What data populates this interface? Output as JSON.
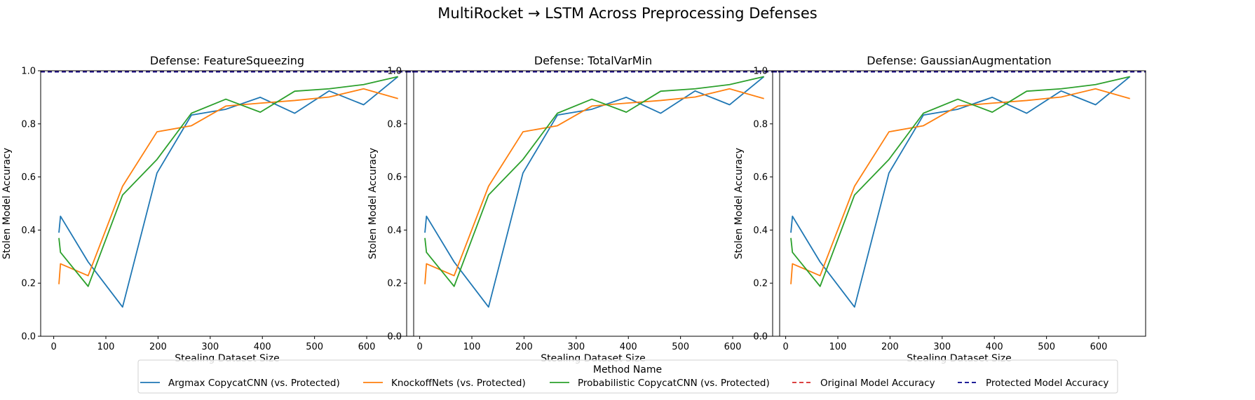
{
  "figure": {
    "title": "MultiRocket → LSTM Across Preprocessing Defenses"
  },
  "legend": {
    "title": "Method Name",
    "entries": [
      {
        "label": "Argmax CopycatCNN (vs. Protected)",
        "color": "#1f77b4",
        "style": "solid"
      },
      {
        "label": "KnockoffNets (vs. Protected)",
        "color": "#ff7f0e",
        "style": "solid"
      },
      {
        "label": "Probabilistic CopycatCNN (vs. Protected)",
        "color": "#2ca02c",
        "style": "solid"
      },
      {
        "label": "Original Model Accuracy",
        "color": "#d62728",
        "style": "dashed"
      },
      {
        "label": "Protected Model Accuracy",
        "color": "#00008b",
        "style": "dashed"
      }
    ]
  },
  "chart_data": [
    {
      "type": "line",
      "title": "Defense: FeatureSqueezing",
      "xlabel": "Stealing Dataset Size",
      "ylabel": "Stolen Model Accuracy",
      "xlim": [
        -25,
        690
      ],
      "ylim": [
        0,
        1.0
      ],
      "xticks": [
        0,
        100,
        200,
        300,
        400,
        500,
        600
      ],
      "yticks": [
        0.0,
        0.2,
        0.4,
        0.6,
        0.8,
        1.0
      ],
      "grid": false,
      "series": [
        {
          "name": "Argmax CopycatCNN (vs. Protected)",
          "color": "#1f77b4",
          "x": [
            10,
            13,
            66,
            132,
            198,
            264,
            330,
            396,
            462,
            528,
            594,
            660
          ],
          "y": [
            0.39,
            0.452,
            0.28,
            0.11,
            0.615,
            0.833,
            0.855,
            0.9,
            0.84,
            0.924,
            0.872,
            0.978
          ]
        },
        {
          "name": "KnockoffNets (vs. Protected)",
          "color": "#ff7f0e",
          "x": [
            10,
            13,
            66,
            132,
            198,
            264,
            330,
            396,
            462,
            528,
            594,
            660
          ],
          "y": [
            0.196,
            0.273,
            0.228,
            0.565,
            0.77,
            0.793,
            0.867,
            0.878,
            0.888,
            0.901,
            0.932,
            0.895
          ]
        },
        {
          "name": "Probabilistic CopycatCNN (vs. Protected)",
          "color": "#2ca02c",
          "x": [
            10,
            13,
            66,
            132,
            198,
            264,
            330,
            396,
            462,
            528,
            594,
            660
          ],
          "y": [
            0.37,
            0.316,
            0.188,
            0.532,
            0.666,
            0.84,
            0.893,
            0.844,
            0.923,
            0.932,
            0.948,
            0.978
          ]
        },
        {
          "name": "Original Model Accuracy",
          "color": "#d62728",
          "dashed": true,
          "constant": 0.996
        },
        {
          "name": "Protected Model Accuracy",
          "color": "#00008b",
          "dashed": true,
          "constant": 0.996
        }
      ]
    },
    {
      "type": "line",
      "title": "Defense: TotalVarMin",
      "xlabel": "Stealing Dataset Size",
      "ylabel": "Stolen Model Accuracy",
      "xlim": [
        -25,
        690
      ],
      "ylim": [
        0,
        1.0
      ],
      "xticks": [
        0,
        100,
        200,
        300,
        400,
        500,
        600
      ],
      "yticks": [
        0.0,
        0.2,
        0.4,
        0.6,
        0.8,
        1.0
      ],
      "grid": false,
      "series": [
        {
          "name": "Argmax CopycatCNN (vs. Protected)",
          "color": "#1f77b4",
          "x": [
            10,
            13,
            66,
            132,
            198,
            264,
            330,
            396,
            462,
            528,
            594,
            660
          ],
          "y": [
            0.39,
            0.452,
            0.28,
            0.11,
            0.615,
            0.833,
            0.855,
            0.9,
            0.84,
            0.924,
            0.872,
            0.978
          ]
        },
        {
          "name": "KnockoffNets (vs. Protected)",
          "color": "#ff7f0e",
          "x": [
            10,
            13,
            66,
            132,
            198,
            264,
            330,
            396,
            462,
            528,
            594,
            660
          ],
          "y": [
            0.196,
            0.273,
            0.228,
            0.565,
            0.77,
            0.793,
            0.867,
            0.878,
            0.888,
            0.901,
            0.932,
            0.895
          ]
        },
        {
          "name": "Probabilistic CopycatCNN (vs. Protected)",
          "color": "#2ca02c",
          "x": [
            10,
            13,
            66,
            132,
            198,
            264,
            330,
            396,
            462,
            528,
            594,
            660
          ],
          "y": [
            0.37,
            0.316,
            0.188,
            0.532,
            0.666,
            0.84,
            0.893,
            0.844,
            0.923,
            0.932,
            0.948,
            0.978
          ]
        },
        {
          "name": "Original Model Accuracy",
          "color": "#d62728",
          "dashed": true,
          "constant": 0.996
        },
        {
          "name": "Protected Model Accuracy",
          "color": "#00008b",
          "dashed": true,
          "constant": 0.996
        }
      ]
    },
    {
      "type": "line",
      "title": "Defense: GaussianAugmentation",
      "xlabel": "Stealing Dataset Size",
      "ylabel": "Stolen Model Accuracy",
      "xlim": [
        -25,
        690
      ],
      "ylim": [
        0,
        1.0
      ],
      "xticks": [
        0,
        100,
        200,
        300,
        400,
        500,
        600
      ],
      "yticks": [
        0.0,
        0.2,
        0.4,
        0.6,
        0.8,
        1.0
      ],
      "grid": false,
      "series": [
        {
          "name": "Argmax CopycatCNN (vs. Protected)",
          "color": "#1f77b4",
          "x": [
            10,
            13,
            66,
            132,
            198,
            264,
            330,
            396,
            462,
            528,
            594,
            660
          ],
          "y": [
            0.39,
            0.452,
            0.28,
            0.11,
            0.615,
            0.833,
            0.855,
            0.9,
            0.84,
            0.924,
            0.872,
            0.978
          ]
        },
        {
          "name": "KnockoffNets (vs. Protected)",
          "color": "#ff7f0e",
          "x": [
            10,
            13,
            66,
            132,
            198,
            264,
            330,
            396,
            462,
            528,
            594,
            660
          ],
          "y": [
            0.196,
            0.273,
            0.228,
            0.565,
            0.77,
            0.793,
            0.867,
            0.878,
            0.888,
            0.901,
            0.932,
            0.895
          ]
        },
        {
          "name": "Probabilistic CopycatCNN (vs. Protected)",
          "color": "#2ca02c",
          "x": [
            10,
            13,
            66,
            132,
            198,
            264,
            330,
            396,
            462,
            528,
            594,
            660
          ],
          "y": [
            0.37,
            0.316,
            0.188,
            0.532,
            0.666,
            0.84,
            0.893,
            0.844,
            0.923,
            0.932,
            0.948,
            0.978
          ]
        },
        {
          "name": "Original Model Accuracy",
          "color": "#d62728",
          "dashed": true,
          "constant": 0.996
        },
        {
          "name": "Protected Model Accuracy",
          "color": "#00008b",
          "dashed": true,
          "constant": 0.996
        }
      ]
    }
  ]
}
